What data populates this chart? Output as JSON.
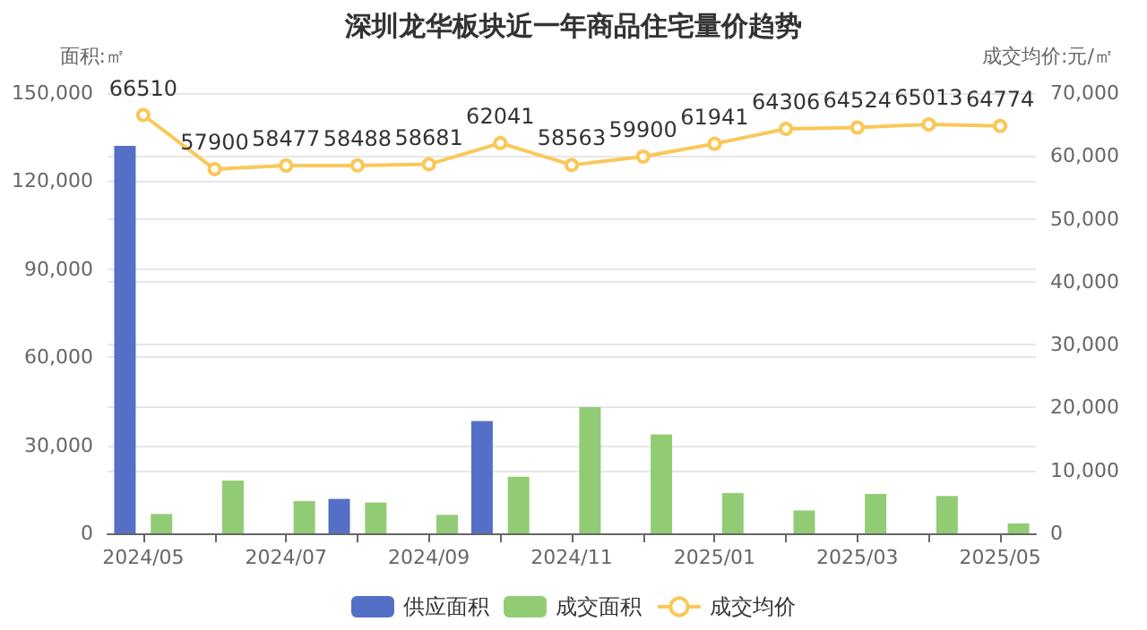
{
  "chart_data": {
    "type": "bar",
    "title": "深圳龙华板块近一年商品住宅量价趋势",
    "categories": [
      "2024/05",
      null,
      "2024/07",
      null,
      "2024/09",
      null,
      "2024/11",
      null,
      "2025/01",
      null,
      "2025/03",
      null,
      "2025/05"
    ],
    "series": [
      {
        "name": "供应面积",
        "color": "#5470c6",
        "values": [
          132000,
          null,
          null,
          11700,
          null,
          38300,
          null,
          null,
          null,
          null,
          null,
          null,
          null
        ]
      },
      {
        "name": "成交面积",
        "color": "#91cc75",
        "values": [
          6600,
          18000,
          11000,
          10500,
          6300,
          19300,
          43000,
          33700,
          13700,
          7800,
          13400,
          12700,
          3400
        ]
      },
      {
        "name": "成交均价",
        "type": "line",
        "axis": "y2",
        "color": "#fac858",
        "marker": "circle",
        "values": [
          66510,
          57900,
          58477,
          58488,
          58681,
          62041,
          58563,
          59900,
          61941,
          64306,
          64524,
          65013,
          64774
        ],
        "value_labels": [
          "66510",
          "57900",
          "58477",
          "58488",
          "58681",
          "62041",
          "58563",
          "59900",
          "61941",
          "64306",
          "64524",
          "65013",
          "64774"
        ]
      }
    ],
    "ylabel": "面积:㎡",
    "y2label": "成交均价:元/㎡",
    "ylim": [
      0,
      150000
    ],
    "yticks": [
      0,
      {
        "value": 30000,
        "label": "30,000"
      },
      {
        "value": 60000,
        "label": "60,000"
      },
      {
        "value": 90000,
        "label": "90,000"
      },
      {
        "value": 120000,
        "label": "120,000"
      },
      {
        "value": 150000,
        "label": "150,000"
      }
    ],
    "y2lim": [
      0,
      70000
    ],
    "y2ticks": [
      0,
      {
        "value": 10000,
        "label": "10,000"
      },
      {
        "value": 20000,
        "label": "20,000"
      },
      {
        "value": 30000,
        "label": "30,000"
      },
      {
        "value": 40000,
        "label": "40,000"
      },
      {
        "value": 50000,
        "label": "50,000"
      },
      {
        "value": 60000,
        "label": "60,000"
      },
      {
        "value": 70000,
        "label": "70,000"
      }
    ],
    "grid": true,
    "legend": "bottom"
  }
}
